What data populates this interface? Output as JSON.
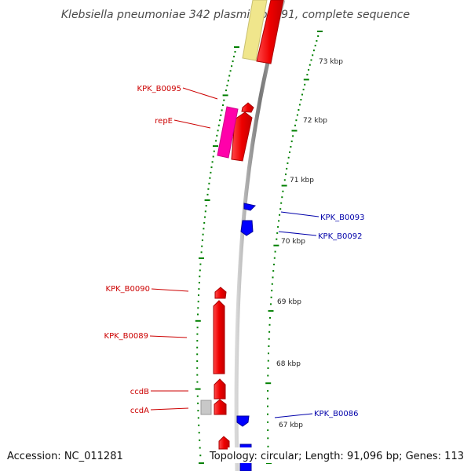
{
  "title": "Klebsiella pneumoniae 342 plasmid pKP91, complete sequence",
  "footer": {
    "accession": "Accession: NC_011281",
    "summary": "Topology: circular; Length: 91,096 bp; Genes: 113"
  },
  "colors": {
    "forward_gene": "#ff0000",
    "reverse_gene": "#0000ff",
    "pseudo_gene": "#c8c8c8",
    "magenta_feature": "#ff00aa",
    "yellow_feature": "#f0e68c",
    "backbone": "#888888",
    "tick_marks": "#008000",
    "forward_label": "#cc0000",
    "reverse_label": "#0000aa"
  },
  "kbp_ticks": [
    {
      "label": "73 kbp"
    },
    {
      "label": "72 kbp"
    },
    {
      "label": "71 kbp"
    },
    {
      "label": "70 kbp"
    },
    {
      "label": "69 kbp"
    },
    {
      "label": "68 kbp"
    },
    {
      "label": "67 kbp"
    }
  ],
  "gene_labels": [
    {
      "text": "KPK_B0095",
      "strand": "forward"
    },
    {
      "text": "repE",
      "strand": "forward"
    },
    {
      "text": "KPK_B0093",
      "strand": "reverse"
    },
    {
      "text": "KPK_B0092",
      "strand": "reverse"
    },
    {
      "text": "KPK_B0090",
      "strand": "forward"
    },
    {
      "text": "KPK_B0089",
      "strand": "forward"
    },
    {
      "text": "ccdB",
      "strand": "forward"
    },
    {
      "text": "ccdA",
      "strand": "forward"
    },
    {
      "text": "KPK_B0086",
      "strand": "reverse"
    }
  ]
}
